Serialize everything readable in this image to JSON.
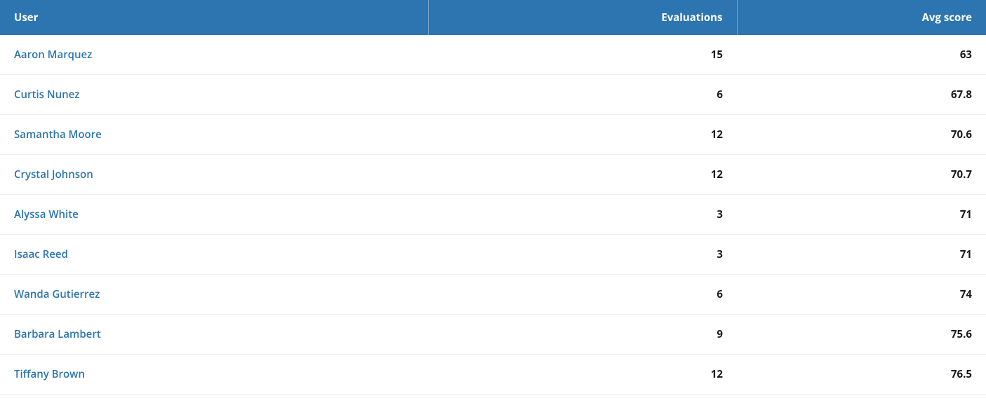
{
  "table": {
    "header_bg_color": "#2c75b0",
    "header_text_color": "#ffffff",
    "link_color": "#2c75b0",
    "row_border_color": "#ececec",
    "columns": {
      "user": "User",
      "evaluations": "Evaluations",
      "avgscore": "Avg score"
    },
    "rows": [
      {
        "user": "Aaron Marquez",
        "evaluations": "15",
        "avgscore": "63"
      },
      {
        "user": "Curtis Nunez",
        "evaluations": "6",
        "avgscore": "67.8"
      },
      {
        "user": "Samantha Moore",
        "evaluations": "12",
        "avgscore": "70.6"
      },
      {
        "user": "Crystal Johnson",
        "evaluations": "12",
        "avgscore": "70.7"
      },
      {
        "user": "Alyssa White",
        "evaluations": "3",
        "avgscore": "71"
      },
      {
        "user": "Isaac Reed",
        "evaluations": "3",
        "avgscore": "71"
      },
      {
        "user": "Wanda Gutierrez",
        "evaluations": "6",
        "avgscore": "74"
      },
      {
        "user": "Barbara Lambert",
        "evaluations": "9",
        "avgscore": "75.6"
      },
      {
        "user": "Tiffany Brown",
        "evaluations": "12",
        "avgscore": "76.5"
      }
    ]
  }
}
